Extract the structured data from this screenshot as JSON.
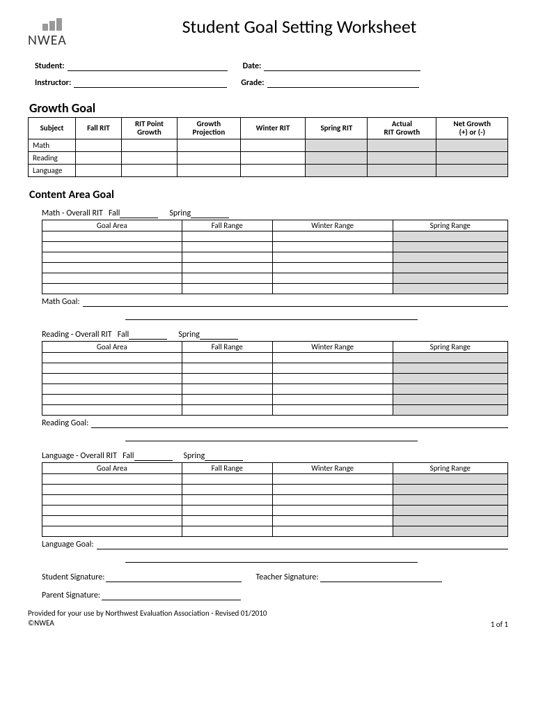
{
  "title": "Student Goal Setting Worksheet",
  "logo_text": "NWEA",
  "info": {
    "student": "Student:",
    "date": "Date:",
    "instructor": "Instructor:",
    "grade": "Grade:"
  },
  "growth": {
    "heading": "Growth Goal",
    "columns": [
      "Subject",
      "Fall RIT",
      "RIT Point Growth",
      "Growth Projection",
      "Winter RIT",
      "Spring RIT",
      "Actual RIT Growth",
      "Net Growth (+) or (-)"
    ],
    "rows": [
      "Math",
      "Reading",
      "Language"
    ],
    "shaded_cols": [
      5,
      6,
      7
    ]
  },
  "content": {
    "heading": "Content Area Goal",
    "columns": [
      "Goal Area",
      "Fall Range",
      "Winter Range",
      "Spring Range"
    ],
    "row_count": 6,
    "shaded_col": 3,
    "labels": {
      "overall_rit": "Overall RIT",
      "fall": "Fall",
      "spring": "Spring"
    },
    "areas": [
      {
        "name": "Math",
        "goal_label": "Math Goal:"
      },
      {
        "name": "Reading",
        "goal_label": "Reading Goal:"
      },
      {
        "name": "Language",
        "goal_label": "Language Goal:"
      }
    ]
  },
  "signatures": {
    "student": "Student Signature:",
    "teacher": "Teacher Signature:",
    "parent": "Parent Signature:"
  },
  "footer": {
    "line1a": "Provided for your use by Northwest Evaluation Association - ",
    "line1b": "Revised 01/2010",
    "line2": "©NWEA",
    "page": "1 of 1"
  }
}
